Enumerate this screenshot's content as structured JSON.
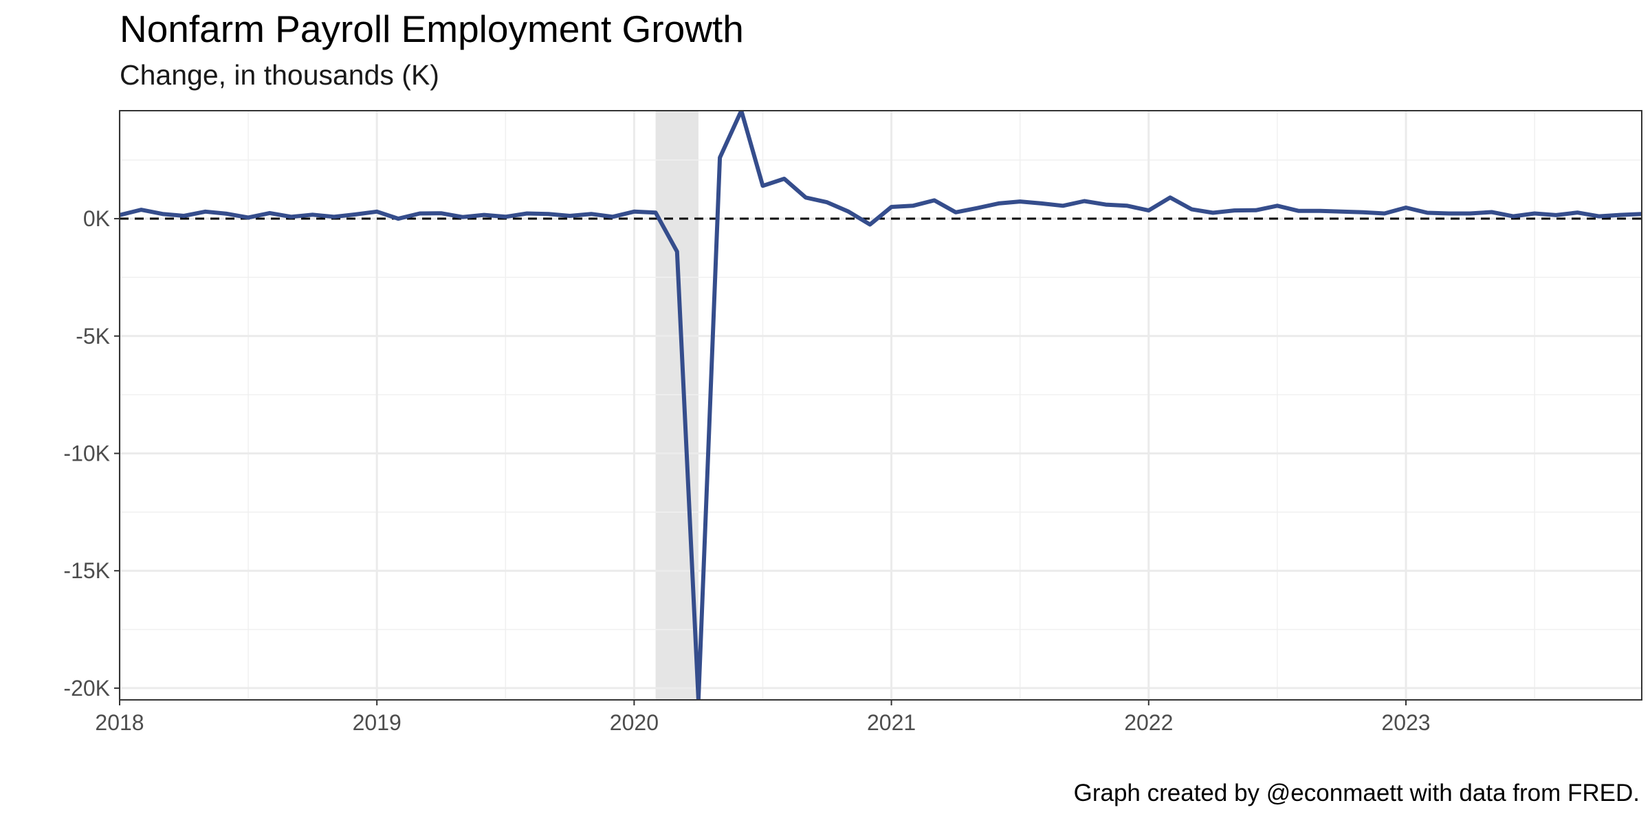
{
  "chart_data": {
    "type": "line",
    "title": "Nonfarm Payroll Employment Growth",
    "subtitle": "Change, in thousands (K)",
    "caption": "Graph created by @econmaett with data from FRED.",
    "xlabel": "",
    "ylabel": "",
    "x_ticks": [
      "2018",
      "2019",
      "2020",
      "2021",
      "2022",
      "2023"
    ],
    "y_ticks": [
      {
        "value": 0,
        "label": "0K"
      },
      {
        "value": -5000,
        "label": "-5K"
      },
      {
        "value": -10000,
        "label": "-10K"
      },
      {
        "value": -15000,
        "label": "-15K"
      },
      {
        "value": -20000,
        "label": "-20K"
      }
    ],
    "xlim": [
      "2018-01",
      "2023-12"
    ],
    "ylim": [
      -20500,
      4600
    ],
    "grid": true,
    "reference_line": {
      "value": 0,
      "style": "dashed",
      "color": "#000000"
    },
    "recession_shading": {
      "start": "2020-02",
      "end": "2020-04",
      "color": "#e5e5e5"
    },
    "series": [
      {
        "color": "#354d8c",
        "x": [
          "2018-01",
          "2018-02",
          "2018-03",
          "2018-04",
          "2018-05",
          "2018-06",
          "2018-07",
          "2018-08",
          "2018-09",
          "2018-10",
          "2018-11",
          "2018-12",
          "2019-01",
          "2019-02",
          "2019-03",
          "2019-04",
          "2019-05",
          "2019-06",
          "2019-07",
          "2019-08",
          "2019-09",
          "2019-10",
          "2019-11",
          "2019-12",
          "2020-01",
          "2020-02",
          "2020-03",
          "2020-04",
          "2020-05",
          "2020-06",
          "2020-07",
          "2020-08",
          "2020-09",
          "2020-10",
          "2020-11",
          "2020-12",
          "2021-01",
          "2021-02",
          "2021-03",
          "2021-04",
          "2021-05",
          "2021-06",
          "2021-07",
          "2021-08",
          "2021-09",
          "2021-10",
          "2021-11",
          "2021-12",
          "2022-01",
          "2022-02",
          "2022-03",
          "2022-04",
          "2022-05",
          "2022-06",
          "2022-07",
          "2022-08",
          "2022-09",
          "2022-10",
          "2022-11",
          "2022-12",
          "2023-01",
          "2023-02",
          "2023-03",
          "2023-04",
          "2023-05",
          "2023-06",
          "2023-07",
          "2023-08",
          "2023-09",
          "2023-10",
          "2023-11",
          "2023-12"
        ],
        "values": [
          150,
          380,
          200,
          120,
          300,
          210,
          50,
          240,
          80,
          170,
          80,
          180,
          300,
          0,
          220,
          230,
          70,
          160,
          80,
          220,
          200,
          120,
          200,
          80,
          300,
          260,
          -1400,
          -20500,
          2600,
          4600,
          1400,
          1700,
          900,
          700,
          300,
          -250,
          500,
          550,
          780,
          270,
          450,
          650,
          730,
          650,
          550,
          750,
          600,
          550,
          350,
          900,
          400,
          250,
          350,
          360,
          550,
          330,
          330,
          300,
          270,
          220,
          470,
          250,
          220,
          220,
          280,
          100,
          220,
          150,
          260,
          100,
          160,
          200
        ]
      }
    ]
  }
}
